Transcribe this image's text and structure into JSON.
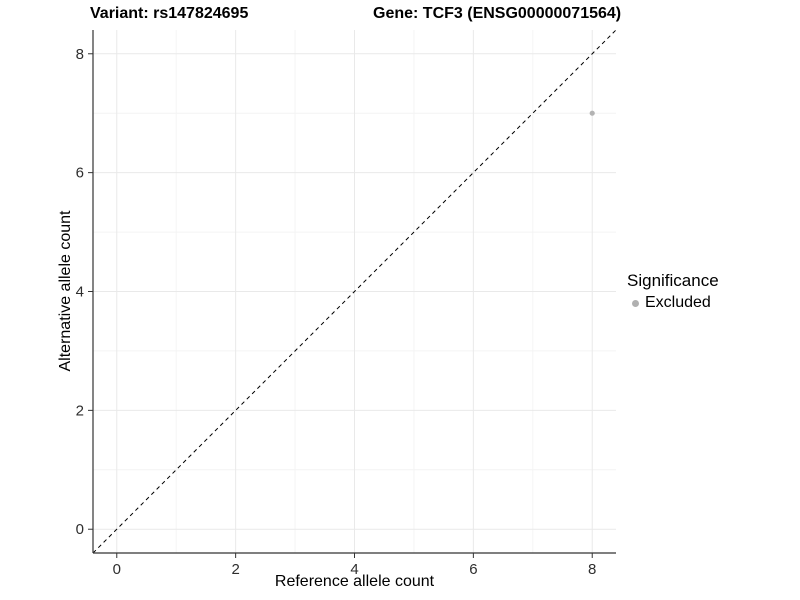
{
  "title": {
    "variant_label": "Variant: rs147824695",
    "gene_label": "Gene: TCF3 (ENSG00000071564)"
  },
  "legend": {
    "title": "Significance",
    "items": [
      {
        "label": "Excluded",
        "color": "#b0b0b0"
      }
    ]
  },
  "chart_data": {
    "type": "scatter",
    "title": "Variant: rs147824695 | Gene: TCF3 (ENSG00000071564)",
    "xlabel": "Reference allele count",
    "ylabel": "Alternative allele count",
    "xlim": [
      -0.4,
      8.4
    ],
    "ylim": [
      -0.4,
      8.4
    ],
    "x_major_ticks": [
      0,
      2,
      4,
      6,
      8
    ],
    "y_major_ticks": [
      0,
      2,
      4,
      6,
      8
    ],
    "x_minor_ticks": [
      1,
      3,
      5,
      7
    ],
    "y_minor_ticks": [
      1,
      3,
      5,
      7
    ],
    "grid": true,
    "legend_position": "right",
    "reference_line": {
      "kind": "abline",
      "slope": 1,
      "intercept": 0,
      "linetype": "dashed",
      "color": "#000000"
    },
    "series": [
      {
        "name": "Excluded",
        "color": "#b3b3b3",
        "points": [
          {
            "x": 8,
            "y": 7
          }
        ]
      }
    ]
  },
  "style": {
    "grid_major_color": "#e9e9e9",
    "grid_minor_color": "#f4f4f4",
    "axis_line_color": "#333333",
    "tick_label_color": "#2e2e2e",
    "point_radius": 2.6,
    "background": "#ffffff"
  }
}
